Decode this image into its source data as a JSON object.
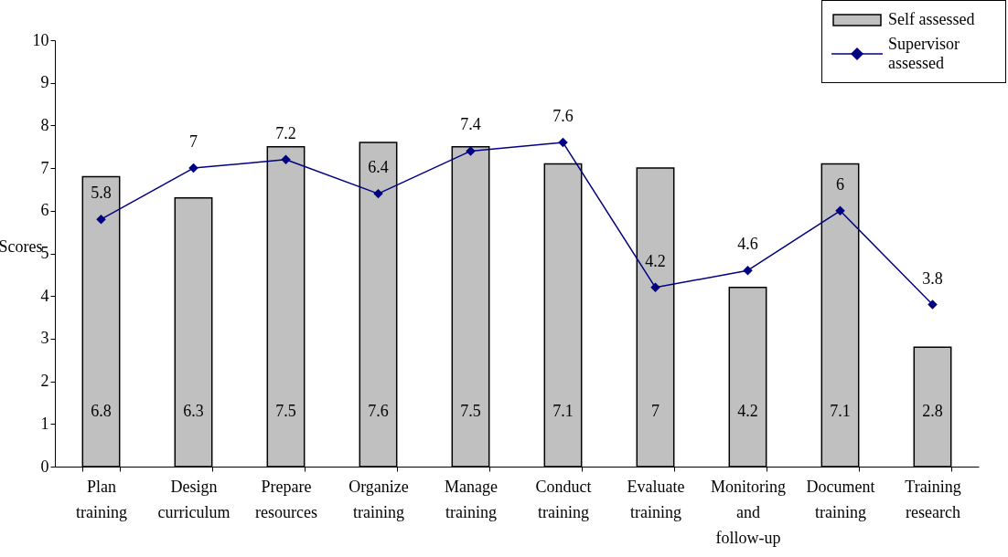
{
  "chart_data": {
    "type": "bar",
    "ylabel": "Scores",
    "categories": [
      "Plan training",
      "Design curriculum",
      "Prepare resources",
      "Organize training",
      "Manage training",
      "Conduct training",
      "Evaluate training",
      "Monitoring and follow-up",
      "Document training",
      "Training research"
    ],
    "series": [
      {
        "name": "Self assessed",
        "color": "#c0c0c0",
        "values": [
          6.8,
          6.3,
          7.5,
          7.6,
          7.5,
          7.1,
          7,
          4.2,
          7.1,
          2.8
        ]
      },
      {
        "name": "Supervisor assessed",
        "type": "line",
        "color": "#000080",
        "values": [
          5.8,
          7,
          7.2,
          6.4,
          7.4,
          7.6,
          4.2,
          4.6,
          6,
          3.8
        ]
      }
    ],
    "ylim": [
      0,
      10
    ],
    "yticks": [
      0,
      1,
      2,
      3,
      4,
      5,
      6,
      7,
      8,
      9,
      10
    ],
    "data_labels": true,
    "legend": "top right",
    "marker": "diamond",
    "line_style": "solid"
  }
}
